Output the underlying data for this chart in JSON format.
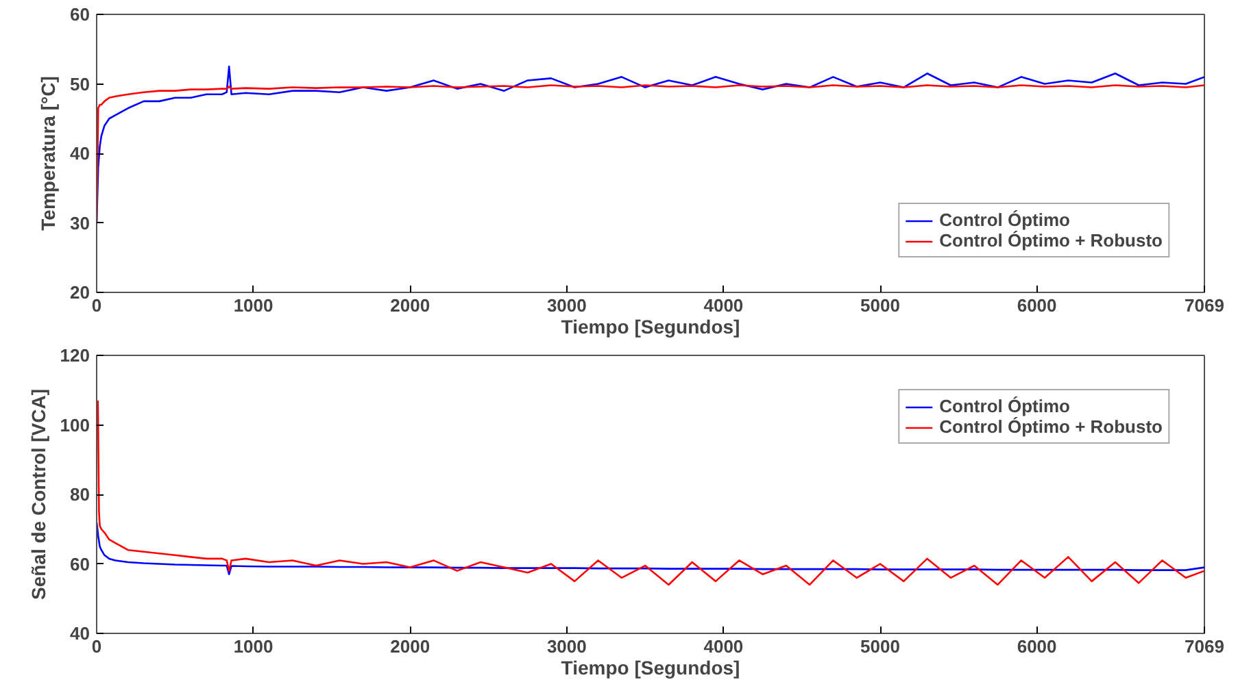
{
  "chart_data": [
    {
      "type": "line",
      "xlabel": "Tiempo [Segundos]",
      "ylabel": "Temperatura [°C]",
      "xlim": [
        0,
        7069
      ],
      "ylim": [
        20,
        60
      ],
      "xticks": [
        0,
        1000,
        2000,
        3000,
        4000,
        5000,
        6000,
        7069
      ],
      "yticks": [
        20,
        30,
        40,
        50,
        60
      ],
      "grid": false,
      "legend": "bottom right",
      "line_style": "solid",
      "marker": "none",
      "x": [
        0,
        10,
        20,
        30,
        50,
        80,
        120,
        200,
        300,
        400,
        500,
        600,
        700,
        800,
        830,
        845,
        860,
        950,
        1100,
        1250,
        1400,
        1550,
        1700,
        1850,
        2000,
        2150,
        2300,
        2450,
        2600,
        2750,
        2900,
        3050,
        3200,
        3350,
        3500,
        3650,
        3800,
        3950,
        4100,
        4250,
        4400,
        4550,
        4700,
        4850,
        5000,
        5150,
        5300,
        5450,
        5600,
        5750,
        5900,
        6050,
        6200,
        6350,
        6500,
        6650,
        6800,
        6950,
        7069
      ],
      "series": [
        {
          "name": "Control Óptimo",
          "color": "#0000ff",
          "values": [
            30,
            38,
            41,
            42.5,
            44,
            45,
            45.5,
            46.5,
            47.5,
            47.5,
            48,
            48,
            48.5,
            48.5,
            48.8,
            52.5,
            48.5,
            48.7,
            48.5,
            49,
            49,
            48.8,
            49.5,
            49,
            49.5,
            50.5,
            49.3,
            50,
            49,
            50.5,
            50.8,
            49.5,
            50,
            51,
            49.5,
            50.5,
            49.8,
            51,
            50,
            49.2,
            50,
            49.5,
            51,
            49.6,
            50.2,
            49.5,
            51.5,
            49.8,
            50.2,
            49.5,
            51,
            50,
            50.5,
            50.2,
            51.5,
            49.8,
            50.2,
            50,
            51
          ]
        },
        {
          "name": "Control Óptimo + Robusto",
          "color": "#ff0000",
          "values": [
            30,
            46.5,
            47,
            47,
            47.5,
            48,
            48.2,
            48.5,
            48.8,
            49,
            49,
            49.2,
            49.2,
            49.3,
            49.3,
            49.6,
            49.3,
            49.4,
            49.3,
            49.5,
            49.4,
            49.5,
            49.5,
            49.6,
            49.5,
            49.7,
            49.5,
            49.6,
            49.7,
            49.5,
            49.8,
            49.6,
            49.7,
            49.5,
            49.8,
            49.6,
            49.7,
            49.5,
            49.8,
            49.6,
            49.7,
            49.5,
            49.8,
            49.6,
            49.7,
            49.5,
            49.8,
            49.6,
            49.7,
            49.5,
            49.8,
            49.6,
            49.7,
            49.5,
            49.8,
            49.6,
            49.7,
            49.5,
            49.8
          ]
        }
      ]
    },
    {
      "type": "line",
      "xlabel": "Tiempo [Segundos]",
      "ylabel": "Señal de Control [VCA]",
      "xlim": [
        0,
        7069
      ],
      "ylim": [
        40,
        120
      ],
      "xticks": [
        0,
        1000,
        2000,
        3000,
        4000,
        5000,
        6000,
        7069
      ],
      "yticks": [
        40,
        60,
        80,
        100,
        120
      ],
      "grid": false,
      "legend": "top right",
      "line_style": "solid",
      "marker": "none",
      "x": [
        0,
        10,
        20,
        30,
        50,
        80,
        120,
        200,
        300,
        400,
        500,
        600,
        700,
        800,
        830,
        845,
        860,
        950,
        1100,
        1250,
        1400,
        1550,
        1700,
        1850,
        2000,
        2150,
        2300,
        2450,
        2600,
        2750,
        2900,
        3050,
        3200,
        3350,
        3500,
        3650,
        3800,
        3950,
        4100,
        4250,
        4400,
        4550,
        4700,
        4850,
        5000,
        5150,
        5300,
        5450,
        5600,
        5750,
        5900,
        6050,
        6200,
        6350,
        6500,
        6650,
        6800,
        6950,
        7069
      ],
      "series": [
        {
          "name": "Control Óptimo",
          "color": "#0000ff",
          "values": [
            72,
            68,
            65,
            64,
            62.5,
            61.5,
            61,
            60.5,
            60.2,
            60,
            59.8,
            59.7,
            59.6,
            59.5,
            59.5,
            57,
            59.4,
            59.3,
            59.2,
            59.2,
            59.2,
            59.1,
            59.1,
            59,
            59,
            59,
            58.9,
            58.9,
            58.8,
            58.8,
            58.8,
            58.8,
            58.7,
            58.7,
            58.7,
            58.6,
            58.6,
            58.6,
            58.6,
            58.5,
            58.5,
            58.5,
            58.5,
            58.5,
            58.4,
            58.4,
            58.4,
            58.4,
            58.4,
            58.3,
            58.3,
            58.3,
            58.3,
            58.3,
            58.3,
            58.2,
            58.2,
            58.2,
            59
          ]
        },
        {
          "name": "Control Óptimo + Robusto",
          "color": "#ff0000",
          "x": [
            8,
            15,
            20,
            30,
            50,
            80,
            120,
            200,
            300,
            400,
            500,
            600,
            700,
            800,
            830,
            845,
            860,
            950,
            1100,
            1250,
            1400,
            1550,
            1700,
            1850,
            2000,
            2150,
            2300,
            2450,
            2600,
            2750,
            2900,
            3050,
            3200,
            3350,
            3500,
            3650,
            3800,
            3950,
            4100,
            4250,
            4400,
            4550,
            4700,
            4850,
            5000,
            5150,
            5300,
            5450,
            5600,
            5750,
            5900,
            6050,
            6200,
            6350,
            6500,
            6650,
            6800,
            6950,
            7069
          ],
          "values": [
            107,
            75,
            71,
            70,
            69,
            67,
            66,
            64,
            63.5,
            63,
            62.5,
            62,
            61.5,
            61.5,
            61,
            58,
            61,
            61.5,
            60.5,
            61,
            59.5,
            61,
            60,
            60.5,
            59,
            61,
            58,
            60.5,
            59,
            57.5,
            60,
            55,
            61,
            56,
            59.5,
            54,
            60.5,
            55,
            61,
            57,
            59.5,
            54,
            61,
            56,
            60,
            55,
            61.5,
            56,
            59.5,
            54,
            61,
            56,
            62,
            55,
            60.5,
            54.5,
            61,
            56,
            58
          ]
        }
      ]
    }
  ]
}
